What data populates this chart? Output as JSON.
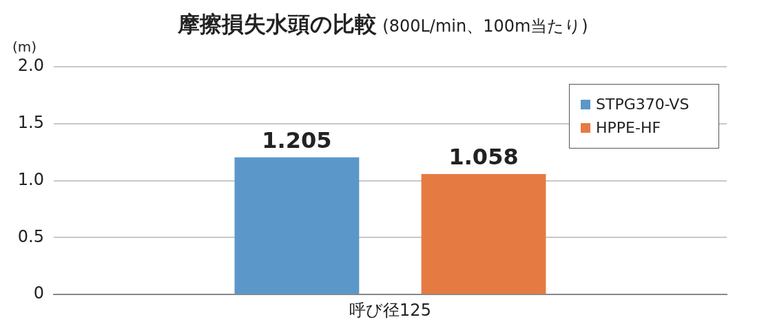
{
  "chart_data": {
    "type": "bar",
    "title": "摩擦損失水頭の比較",
    "subtitle": "(800L/min、100m当たり)",
    "ylabel": "(m)",
    "categories": [
      "呼び径125"
    ],
    "series": [
      {
        "name": "STPG370-VS",
        "color": "#5b97c9",
        "values": [
          1.205
        ]
      },
      {
        "name": "HPPE-HF",
        "color": "#e57b43",
        "values": [
          1.058
        ]
      }
    ],
    "ylim": [
      0,
      2
    ],
    "yticks": [
      0,
      0.5,
      {
        "value": 1,
        "label": "1.0"
      },
      1.5,
      {
        "value": 2,
        "label": "2.0"
      }
    ],
    "grid": "y",
    "legend": "top right",
    "data_labels": true
  }
}
